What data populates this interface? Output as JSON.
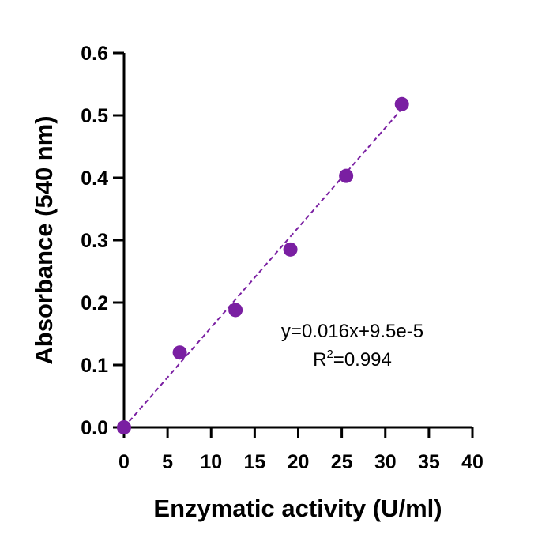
{
  "chart_data": {
    "type": "scatter",
    "xlabel": "Enzymatic activity (U/ml)",
    "ylabel": "Absorbance (540 nm)",
    "xlim": [
      0,
      40
    ],
    "ylim": [
      0,
      0.6
    ],
    "x_ticks": [
      "0",
      "5",
      "10",
      "15",
      "20",
      "25",
      "30",
      "35",
      "40"
    ],
    "y_ticks": [
      "0.0",
      "0.1",
      "0.2",
      "0.3",
      "0.4",
      "0.5",
      "0.6"
    ],
    "grid": false,
    "series": [
      {
        "color": "#7A1FA2",
        "points": [
          {
            "x": 0,
            "y": 0.0
          },
          {
            "x": 6.4,
            "y": 0.12
          },
          {
            "x": 12.8,
            "y": 0.188
          },
          {
            "x": 19.1,
            "y": 0.285
          },
          {
            "x": 25.5,
            "y": 0.403
          },
          {
            "x": 31.9,
            "y": 0.518
          }
        ]
      }
    ],
    "fit_line": {
      "style": "dashed",
      "color": "#7A1FA2",
      "x_range": [
        0,
        31.9
      ],
      "slope": 0.016,
      "intercept": 9.5e-05
    },
    "annotation": {
      "equation": "y=0.016x+9.5e-5",
      "r2_prefix": "R",
      "r2_superscript": "2",
      "r2_value": "=0.994"
    }
  }
}
